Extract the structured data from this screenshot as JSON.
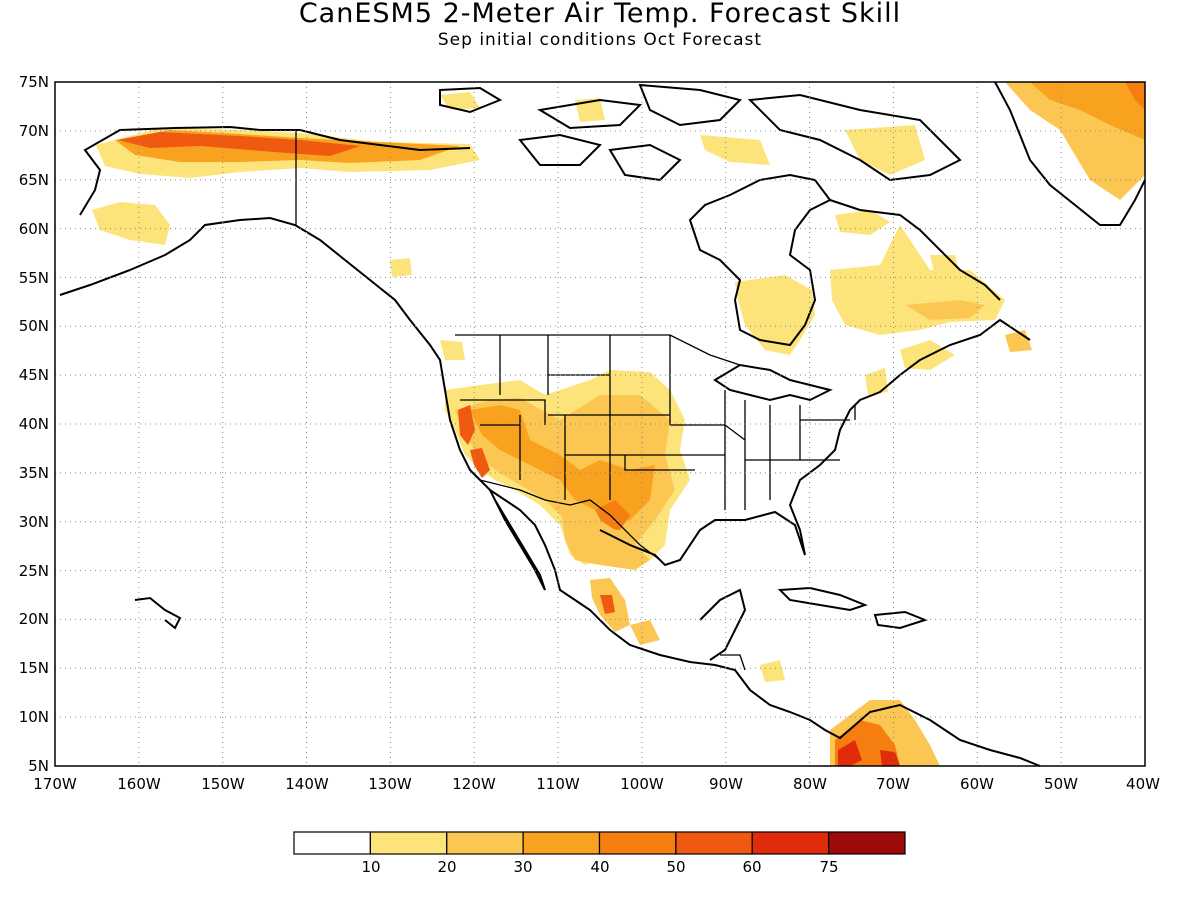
{
  "title": "CanESM5 2-Meter Air Temp. Forecast Skill",
  "subtitle": "Sep initial conditions  Oct Forecast",
  "map": {
    "lat_labels": [
      "75N",
      "70N",
      "65N",
      "60N",
      "55N",
      "50N",
      "45N",
      "40N",
      "35N",
      "30N",
      "25N",
      "20N",
      "15N",
      "10N",
      "5N"
    ],
    "lon_labels": [
      "170W",
      "160W",
      "150W",
      "140W",
      "130W",
      "120W",
      "110W",
      "100W",
      "90W",
      "80W",
      "70W",
      "60W",
      "50W",
      "40W"
    ],
    "lat_range": [
      5,
      75
    ],
    "lon_range": [
      -170,
      -40
    ],
    "grid": "dotted"
  },
  "colorbar": {
    "labels": [
      "10",
      "20",
      "30",
      "40",
      "50",
      "60",
      "75"
    ],
    "colors": [
      "#ffffff",
      "#fde47a",
      "#fbc752",
      "#f9a21f",
      "#f67e10",
      "#f05a10",
      "#e02c0b",
      "#b71007",
      "#9c0a0a"
    ]
  },
  "colors": {
    "c10": "#fde47a",
    "c20": "#fbc752",
    "c30": "#f9a21f",
    "c40": "#f67e10",
    "c50": "#f05a10",
    "c60": "#e02c0b",
    "c75": "#9c0a0a"
  }
}
